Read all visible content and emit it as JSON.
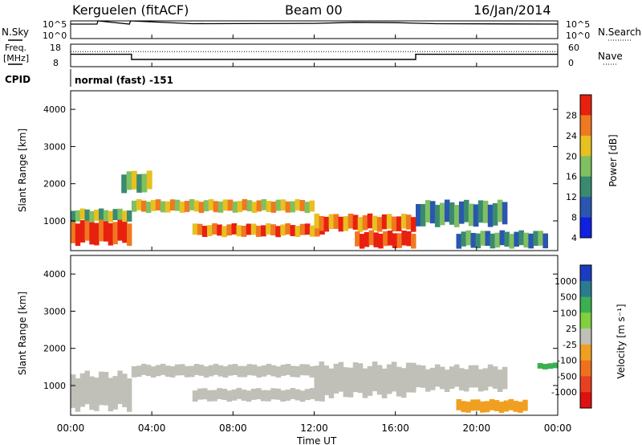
{
  "header": {
    "station": "Kerguelen (fitACF)",
    "beam": "Beam 00",
    "date": "16/Jan/2014"
  },
  "left_labels": {
    "nsky": "N.Sky",
    "freq_line1": "Freq.",
    "freq_line2": "[MHz]",
    "cpid": "CPID"
  },
  "right_labels": {
    "nsearch": "N.Search",
    "nave": "Nave"
  },
  "cpid_value": "normal (fast) -151",
  "chart_data": [
    {
      "type": "line",
      "name": "noise-panel",
      "yticks_left": [
        "10^5",
        "10^0"
      ],
      "yticks_right": [
        "10^5",
        "10^0"
      ],
      "series": [
        {
          "name": "N.Sky",
          "x": [
            0,
            1.3,
            1.35,
            2.9,
            2.95,
            6,
            12,
            14,
            16,
            18,
            24
          ],
          "values": [
            4.1,
            4.1,
            5.0,
            4.1,
            5.0,
            4.2,
            4.3,
            4.6,
            4.5,
            4.2,
            4.1
          ]
        }
      ]
    },
    {
      "type": "line",
      "name": "frequency-panel",
      "yticks_left": [
        "18",
        "8"
      ],
      "yticks_right": [
        "60",
        "0"
      ],
      "series": [
        {
          "name": "Freq.",
          "x": [
            0,
            3.0,
            3.0,
            17.0,
            17.0,
            24
          ],
          "values": [
            13.5,
            13.5,
            11.2,
            11.2,
            13.5,
            13.5
          ]
        },
        {
          "name": "Nave",
          "x": [
            0,
            24
          ],
          "values": [
            40,
            40
          ]
        }
      ]
    },
    {
      "type": "heatmap",
      "name": "power-panel",
      "ylabel": "Slant Range [km]",
      "yticks": [
        1000,
        2000,
        3000,
        4000
      ],
      "ylim": [
        200,
        4500
      ],
      "xlim": [
        0,
        24
      ],
      "colorbar_label": "Power [dB]",
      "colorbar_ticks": [
        4,
        8,
        12,
        16,
        20,
        24,
        28
      ],
      "colors": [
        "#1020e0",
        "#2a56b0",
        "#3a8a70",
        "#80c060",
        "#e8c020",
        "#f07820",
        "#e82010"
      ],
      "bands": [
        {
          "x": [
            0.0,
            3.0
          ],
          "y": [
            400,
            1000
          ],
          "level": 0.92
        },
        {
          "x": [
            0.0,
            3.0
          ],
          "y": [
            1000,
            1300
          ],
          "level": 0.55
        },
        {
          "x": [
            2.5,
            4.0
          ],
          "y": [
            1800,
            2300
          ],
          "level": 0.5
        },
        {
          "x": [
            3.0,
            12.0
          ],
          "y": [
            1250,
            1550
          ],
          "level": 0.65
        },
        {
          "x": [
            6.0,
            12.5
          ],
          "y": [
            600,
            900
          ],
          "level": 0.85
        },
        {
          "x": [
            12.0,
            17.0
          ],
          "y": [
            750,
            1150
          ],
          "level": 0.88
        },
        {
          "x": [
            14.0,
            17.0
          ],
          "y": [
            300,
            700
          ],
          "level": 0.95
        },
        {
          "x": [
            17.0,
            21.5
          ],
          "y": [
            900,
            1500
          ],
          "level": 0.3
        },
        {
          "x": [
            19.0,
            23.5
          ],
          "y": [
            300,
            700
          ],
          "level": 0.35
        }
      ]
    },
    {
      "type": "heatmap",
      "name": "velocity-panel",
      "ylabel": "Slant Range [km]",
      "yticks": [
        1000,
        2000,
        3000,
        4000
      ],
      "ylim": [
        200,
        4500
      ],
      "xlim": [
        0,
        24
      ],
      "xlabel": "Time UT",
      "xticks": [
        "00:00",
        "04:00",
        "08:00",
        "12:00",
        "16:00",
        "20:00",
        "00:00"
      ],
      "colorbar_label": "Velocity [m s⁻¹]",
      "colorbar_ticks": [
        1000,
        500,
        100,
        25,
        -25,
        -100,
        -500,
        -1000
      ],
      "colors": [
        "#1a3cc0",
        "#2a7a90",
        "#3cb050",
        "#80d040",
        "#c0c0b8",
        "#f0a020",
        "#f07020",
        "#e84020",
        "#e01010"
      ],
      "bands": [
        {
          "x": [
            0.0,
            3.0
          ],
          "y": [
            400,
            1300
          ],
          "value": 0
        },
        {
          "x": [
            3.0,
            12.0
          ],
          "y": [
            1250,
            1550
          ],
          "value": 0
        },
        {
          "x": [
            6.0,
            12.5
          ],
          "y": [
            600,
            900
          ],
          "value": 0
        },
        {
          "x": [
            12.0,
            17.0
          ],
          "y": [
            750,
            1550
          ],
          "value": 0
        },
        {
          "x": [
            17.0,
            21.5
          ],
          "y": [
            900,
            1500
          ],
          "value": 0
        },
        {
          "x": [
            19.0,
            22.5
          ],
          "y": [
            300,
            600
          ],
          "value": -100
        },
        {
          "x": [
            23.0,
            24.0
          ],
          "y": [
            1450,
            1600
          ],
          "value": 100
        }
      ]
    }
  ]
}
